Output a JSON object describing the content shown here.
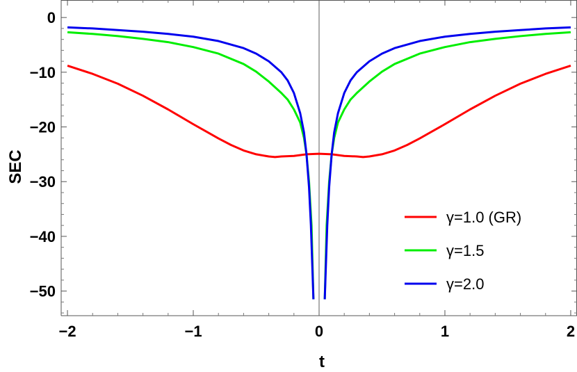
{
  "chart_data": {
    "type": "line",
    "xlabel": "t",
    "ylabel": "SEC",
    "xlim": [
      -2.05,
      2.05
    ],
    "ylim": [
      -54.5,
      3.2
    ],
    "x_ticks": [
      -2,
      -1,
      0,
      1,
      2
    ],
    "x_tick_labels": [
      "−2",
      "−1",
      "0",
      "1",
      "2"
    ],
    "y_ticks": [
      0,
      -10,
      -20,
      -30,
      -40,
      -50
    ],
    "y_tick_labels": [
      "0",
      "−10",
      "−20",
      "−30",
      "−40",
      "−50"
    ],
    "grid": false,
    "legend_position": "bottom-right",
    "series": [
      {
        "name": "γ=1.0 (GR)",
        "color": "#ff0000",
        "x": [
          -2.0,
          -1.8,
          -1.6,
          -1.4,
          -1.2,
          -1.0,
          -0.9,
          -0.8,
          -0.7,
          -0.6,
          -0.5,
          -0.4,
          -0.35,
          -0.3,
          -0.2,
          -0.1,
          0.0,
          0.1,
          0.2,
          0.3,
          0.35,
          0.4,
          0.5,
          0.6,
          0.7,
          0.8,
          0.9,
          1.0,
          1.2,
          1.4,
          1.6,
          1.8,
          2.0
        ],
        "y": [
          -8.8,
          -10.3,
          -12.1,
          -14.3,
          -16.8,
          -19.5,
          -20.8,
          -22.1,
          -23.3,
          -24.3,
          -25.0,
          -25.4,
          -25.5,
          -25.4,
          -25.3,
          -25.0,
          -24.9,
          -25.0,
          -25.3,
          -25.4,
          -25.5,
          -25.4,
          -25.0,
          -24.3,
          -23.3,
          -22.1,
          -20.8,
          -19.5,
          -16.8,
          -14.3,
          -12.1,
          -10.3,
          -8.8
        ]
      },
      {
        "name": "γ=1.5",
        "color": "#00ee00",
        "x": [
          -2.0,
          -1.8,
          -1.6,
          -1.4,
          -1.2,
          -1.0,
          -0.8,
          -0.6,
          -0.5,
          -0.4,
          -0.3,
          -0.25,
          -0.2,
          -0.15,
          -0.12,
          -0.1,
          -0.08,
          -0.06,
          -0.045,
          0.045,
          0.06,
          0.08,
          0.1,
          0.12,
          0.15,
          0.2,
          0.25,
          0.3,
          0.4,
          0.5,
          0.6,
          0.8,
          1.0,
          1.2,
          1.4,
          1.6,
          1.8,
          2.0
        ],
        "y": [
          -2.7,
          -3.0,
          -3.4,
          -3.9,
          -4.5,
          -5.4,
          -6.6,
          -8.5,
          -9.9,
          -11.7,
          -13.8,
          -15.0,
          -16.8,
          -19.2,
          -22.0,
          -25.0,
          -30.0,
          -38.0,
          -51.5,
          -51.5,
          -38.0,
          -30.0,
          -25.0,
          -22.0,
          -19.2,
          -16.8,
          -15.0,
          -13.8,
          -11.7,
          -9.9,
          -8.5,
          -6.6,
          -5.4,
          -4.5,
          -3.9,
          -3.4,
          -3.0,
          -2.7
        ]
      },
      {
        "name": "γ=2.0",
        "color": "#0000ee",
        "x": [
          -2.0,
          -1.8,
          -1.6,
          -1.4,
          -1.2,
          -1.0,
          -0.8,
          -0.6,
          -0.5,
          -0.4,
          -0.3,
          -0.25,
          -0.2,
          -0.15,
          -0.12,
          -0.1,
          -0.08,
          -0.065,
          -0.045,
          0.045,
          0.065,
          0.08,
          0.1,
          0.12,
          0.15,
          0.2,
          0.25,
          0.3,
          0.4,
          0.5,
          0.6,
          0.8,
          1.0,
          1.2,
          1.4,
          1.6,
          1.8,
          2.0
        ],
        "y": [
          -1.8,
          -2.0,
          -2.3,
          -2.6,
          -3.0,
          -3.5,
          -4.3,
          -5.6,
          -6.6,
          -8.0,
          -10.0,
          -11.5,
          -13.8,
          -17.5,
          -21.0,
          -25.0,
          -31.0,
          -38.0,
          -51.5,
          -51.5,
          -38.0,
          -31.0,
          -25.0,
          -21.0,
          -17.5,
          -13.8,
          -11.5,
          -10.0,
          -8.0,
          -6.6,
          -5.6,
          -4.3,
          -3.5,
          -3.0,
          -2.6,
          -2.3,
          -2.0,
          -1.8
        ]
      }
    ]
  }
}
